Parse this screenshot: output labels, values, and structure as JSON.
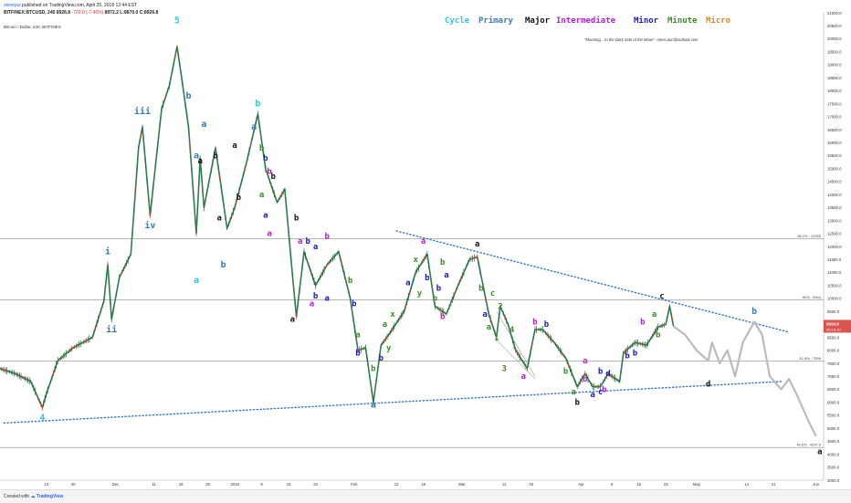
{
  "header": {
    "user": "stevepui",
    "published": "published on TradingView.com, April 25, 2018 12:44 EST",
    "symbol_line": "BITFINEX:BTCUSD, 240",
    "ohlc_last": "8926.8",
    "change": "-720.0 (-7.46%)",
    "ohlc_rest": "8972.2 L:8870.0 C:8926.8",
    "chart_title": "Bitcoin / Dollar, 240, BITFINEX"
  },
  "legend": {
    "cycle": "Cycle",
    "primary": "Primary",
    "major": "Major",
    "intermediate": "Intermediate",
    "minor": "Minor",
    "minute": "Minute",
    "micro": "Micro"
  },
  "colors": {
    "cycle": "#2fc5e0",
    "primary": "#3b78b8",
    "major": "#111111",
    "intermediate": "#b21fd6",
    "minor": "#1a1ac8",
    "minute": "#3b8c2a",
    "micro": "#e08a10",
    "candle": "#2e7d4f",
    "trendline": "#3377cc",
    "projection": "#bbbbbb",
    "current_price": "#d9534f"
  },
  "quote": "\"Mooning... to the Dark Side of the Moon\" -steve.pun@outlook.com",
  "footer": {
    "created": "Created with",
    "brand": "TradingView"
  },
  "chart_data": {
    "type": "line",
    "y_axis": {
      "ticks": [
        "21000.0",
        "20500.0",
        "20000.0",
        "19500.0",
        "19000.0",
        "18500.0",
        "18000.0",
        "17500.0",
        "17000.0",
        "16500.0",
        "16000.0",
        "15500.0",
        "15000.0",
        "14500.0",
        "14000.0",
        "13500.0",
        "13000.0",
        "12500.0",
        "12000.0",
        "11500.0",
        "11000.0",
        "10500.0",
        "10000.0",
        "9500.0",
        "9000.0",
        "8500.0",
        "8000.0",
        "7500.0",
        "7000.0",
        "6500.0",
        "6000.0",
        "5500.0",
        "5000.0",
        "4500.0",
        "4000.0",
        "3500.0",
        "3000.0"
      ],
      "range": [
        3000,
        21000
      ]
    },
    "x_axis": {
      "ticks": [
        "13",
        "20",
        "Dec",
        "11",
        "18",
        "25",
        "2018",
        "8",
        "15",
        "22",
        "Feb",
        "12",
        "19",
        "Mar",
        "12",
        "19",
        "Apr",
        "9",
        "16",
        "23",
        "May",
        "14",
        "21",
        "Jun"
      ]
    },
    "fib_levels": [
      {
        "label": "38.2% : 12293",
        "value": 12293
      },
      {
        "label": "50% : 9944",
        "value": 9944
      },
      {
        "label": "61.8% : 7595",
        "value": 7595
      },
      {
        "label": "78.6% : 4257.5",
        "value": 4257.5
      }
    ],
    "current_price": "8926.8",
    "current_price_countdown": "00:15:10",
    "price_path": [
      {
        "x": "Nov 1",
        "y": 7300
      },
      {
        "x": "Nov 5",
        "y": 7100
      },
      {
        "x": "Nov 9",
        "y": 6800
      },
      {
        "x": "Nov 12",
        "y": 5800
      },
      {
        "x": "Nov 13",
        "y": 6300
      },
      {
        "x": "Nov 16",
        "y": 7600
      },
      {
        "x": "Nov 20",
        "y": 8100
      },
      {
        "x": "Nov 25",
        "y": 8500
      },
      {
        "x": "Nov 28",
        "y": 9900
      },
      {
        "x": "Nov 29",
        "y": 11300
      },
      {
        "x": "Nov 30",
        "y": 9200
      },
      {
        "x": "Dec 2",
        "y": 10800
      },
      {
        "x": "Dec 5",
        "y": 11700
      },
      {
        "x": "Dec 7",
        "y": 15800
      },
      {
        "x": "Dec 8",
        "y": 16600
      },
      {
        "x": "Dec 10",
        "y": 13200
      },
      {
        "x": "Dec 13",
        "y": 17300
      },
      {
        "x": "Dec 15",
        "y": 18200
      },
      {
        "x": "Dec 17",
        "y": 19700
      },
      {
        "x": "Dec 18",
        "y": 18700
      },
      {
        "x": "Dec 20",
        "y": 16600
      },
      {
        "x": "Dec 22",
        "y": 12500
      },
      {
        "x": "Dec 23",
        "y": 15400
      },
      {
        "x": "Dec 24",
        "y": 13500
      },
      {
        "x": "Dec 27",
        "y": 15800
      },
      {
        "x": "Dec 30",
        "y": 12700
      },
      {
        "x": "Jan 1",
        "y": 13500
      },
      {
        "x": "Jan 4",
        "y": 15200
      },
      {
        "x": "Jan 7",
        "y": 17100
      },
      {
        "x": "Jan 9",
        "y": 15000
      },
      {
        "x": "Jan 12",
        "y": 13700
      },
      {
        "x": "Jan 14",
        "y": 14200
      },
      {
        "x": "Jan 16",
        "y": 10900
      },
      {
        "x": "Jan 17",
        "y": 9300
      },
      {
        "x": "Jan 19",
        "y": 11800
      },
      {
        "x": "Jan 22",
        "y": 10500
      },
      {
        "x": "Jan 25",
        "y": 11300
      },
      {
        "x": "Jan 28",
        "y": 11800
      },
      {
        "x": "Jan 31",
        "y": 10000
      },
      {
        "x": "Feb 2",
        "y": 8000
      },
      {
        "x": "Feb 4",
        "y": 8100
      },
      {
        "x": "Feb 6",
        "y": 6000
      },
      {
        "x": "Feb 8",
        "y": 8200
      },
      {
        "x": "Feb 10",
        "y": 8600
      },
      {
        "x": "Feb 14",
        "y": 9500
      },
      {
        "x": "Feb 17",
        "y": 11000
      },
      {
        "x": "Feb 20",
        "y": 11700
      },
      {
        "x": "Feb 22",
        "y": 9700
      },
      {
        "x": "Feb 25",
        "y": 9400
      },
      {
        "x": "Feb 28",
        "y": 10500
      },
      {
        "x": "Mar 3",
        "y": 11500
      },
      {
        "x": "Mar 5",
        "y": 11600
      },
      {
        "x": "Mar 8",
        "y": 9400
      },
      {
        "x": "Mar 10",
        "y": 8500
      },
      {
        "x": "Mar 11",
        "y": 9700
      },
      {
        "x": "Mar 13",
        "y": 9000
      },
      {
        "x": "Mar 15",
        "y": 8000
      },
      {
        "x": "Mar 18",
        "y": 7300
      },
      {
        "x": "Mar 20",
        "y": 8800
      },
      {
        "x": "Mar 22",
        "y": 8800
      },
      {
        "x": "Mar 25",
        "y": 8300
      },
      {
        "x": "Mar 28",
        "y": 7700
      },
      {
        "x": "Mar 31",
        "y": 6600
      },
      {
        "x": "Apr 2",
        "y": 7100
      },
      {
        "x": "Apr 4",
        "y": 6600
      },
      {
        "x": "Apr 6",
        "y": 6600
      },
      {
        "x": "Apr 8",
        "y": 7100
      },
      {
        "x": "Apr 11",
        "y": 6800
      },
      {
        "x": "Apr 12",
        "y": 7900
      },
      {
        "x": "Apr 15",
        "y": 8300
      },
      {
        "x": "Apr 18",
        "y": 8200
      },
      {
        "x": "Apr 21",
        "y": 8900
      },
      {
        "x": "Apr 23",
        "y": 9000
      },
      {
        "x": "Apr 24",
        "y": 9700
      },
      {
        "x": "Apr 25",
        "y": 8926.8
      }
    ],
    "projection_path": [
      {
        "x": "Apr 25",
        "y": 8926.8
      },
      {
        "x": "Apr 28",
        "y": 8600
      },
      {
        "x": "May 1",
        "y": 8000
      },
      {
        "x": "May 4",
        "y": 7600
      },
      {
        "x": "May 5",
        "y": 8300
      },
      {
        "x": "May 7",
        "y": 7500
      },
      {
        "x": "May 9",
        "y": 8000
      },
      {
        "x": "May 11",
        "y": 7000
      },
      {
        "x": "May 13",
        "y": 8300
      },
      {
        "x": "May 16",
        "y": 9100
      },
      {
        "x": "May 18",
        "y": 8600
      },
      {
        "x": "May 20",
        "y": 7000
      },
      {
        "x": "May 23",
        "y": 6500
      },
      {
        "x": "May 25",
        "y": 6900
      },
      {
        "x": "May 27",
        "y": 6300
      },
      {
        "x": "May 30",
        "y": 5300
      },
      {
        "x": "Jun 1",
        "y": 4700
      }
    ],
    "wave_labels": [
      {
        "text": "4",
        "level": "cycle",
        "x": "Nov 12",
        "y": 5300
      },
      {
        "text": "i",
        "level": "primary",
        "x": "Nov 29",
        "y": 11700
      },
      {
        "text": "ii",
        "level": "primary",
        "x": "Nov 30",
        "y": 8700
      },
      {
        "text": "iii",
        "level": "primary",
        "x": "Dec 8",
        "y": 17100
      },
      {
        "text": "iv",
        "level": "primary",
        "x": "Dec 10",
        "y": 12700
      },
      {
        "text": "5",
        "level": "cycle",
        "x": "Dec 17",
        "y": 20600
      },
      {
        "text": "b",
        "level": "primary",
        "x": "Dec 20",
        "y": 17700
      },
      {
        "text": "a",
        "level": "primary",
        "x": "Dec 22",
        "y": 15400
      },
      {
        "text": "a",
        "level": "cycle",
        "x": "Dec 22",
        "y": 10600
      },
      {
        "text": "a",
        "level": "major",
        "x": "Dec 23",
        "y": 15200
      },
      {
        "text": "a",
        "level": "primary",
        "x": "Dec 24",
        "y": 16600
      },
      {
        "text": "b",
        "level": "major",
        "x": "Dec 27",
        "y": 15400
      },
      {
        "text": "a",
        "level": "major",
        "x": "Dec 28",
        "y": 13000
      },
      {
        "text": "b",
        "level": "primary",
        "x": "Dec 29",
        "y": 11200
      },
      {
        "text": "a",
        "level": "major",
        "x": "Jan 1",
        "y": 15800
      },
      {
        "text": "b",
        "level": "major",
        "x": "Jan 2",
        "y": 13800
      },
      {
        "text": "b",
        "level": "cycle",
        "x": "Jan 7",
        "y": 17400
      },
      {
        "text": "a",
        "level": "primary",
        "x": "Jan 6",
        "y": 16500
      },
      {
        "text": "b",
        "level": "minute",
        "x": "Jan 8",
        "y": 15700
      },
      {
        "text": "b",
        "level": "minor",
        "x": "Jan 9",
        "y": 15300
      },
      {
        "text": "b",
        "level": "intermediate",
        "x": "Jan 10",
        "y": 14800
      },
      {
        "text": "b",
        "level": "major",
        "x": "Jan 11",
        "y": 14600
      },
      {
        "text": "a",
        "level": "minute",
        "x": "Jan 8",
        "y": 13900
      },
      {
        "text": "a",
        "level": "minor",
        "x": "Jan 9",
        "y": 13100
      },
      {
        "text": "a",
        "level": "intermediate",
        "x": "Jan 10",
        "y": 12400
      },
      {
        "text": "b",
        "level": "major",
        "x": "Jan 17",
        "y": 13000
      },
      {
        "text": "a",
        "level": "major",
        "x": "Jan 16",
        "y": 9100
      },
      {
        "text": "a",
        "level": "intermediate",
        "x": "Jan 18",
        "y": 12100
      },
      {
        "text": "b",
        "level": "minor",
        "x": "Jan 20",
        "y": 12100
      },
      {
        "text": "a",
        "level": "minor",
        "x": "Jan 22",
        "y": 11900
      },
      {
        "text": "b",
        "level": "intermediate",
        "x": "Jan 25",
        "y": 12300
      },
      {
        "text": "a",
        "level": "intermediate",
        "x": "Jan 21",
        "y": 9700
      },
      {
        "text": "b",
        "level": "minor",
        "x": "Jan 22",
        "y": 10000
      },
      {
        "text": "a",
        "level": "minor",
        "x": "Jan 25",
        "y": 9900
      },
      {
        "text": "b",
        "level": "minute",
        "x": "Jan 31",
        "y": 10600
      },
      {
        "text": "b",
        "level": "minor",
        "x": "Feb 1",
        "y": 9700
      },
      {
        "text": "b",
        "level": "minor",
        "x": "Feb 2",
        "y": 7800
      },
      {
        "text": "a",
        "level": "minute",
        "x": "Feb 2",
        "y": 8500
      },
      {
        "text": "a",
        "level": "primary",
        "x": "Feb 6",
        "y": 5800
      },
      {
        "text": "b",
        "level": "minute",
        "x": "Feb 6",
        "y": 7200
      },
      {
        "text": "b",
        "level": "minor",
        "x": "Feb 8",
        "y": 7600
      },
      {
        "text": "a",
        "level": "minute",
        "x": "Feb 9",
        "y": 8900
      },
      {
        "text": "y",
        "level": "minute",
        "x": "Feb 10",
        "y": 8000
      },
      {
        "text": "x",
        "level": "minute",
        "x": "Feb 11",
        "y": 9300
      },
      {
        "text": "a",
        "level": "minor",
        "x": "Feb 15",
        "y": 10500
      },
      {
        "text": "x",
        "level": "minute",
        "x": "Feb 17",
        "y": 11400
      },
      {
        "text": "y",
        "level": "minute",
        "x": "Feb 18",
        "y": 10100
      },
      {
        "text": "a",
        "level": "intermediate",
        "x": "Feb 19",
        "y": 12100
      },
      {
        "text": "b",
        "level": "minor",
        "x": "Feb 20",
        "y": 10700
      },
      {
        "text": "b",
        "level": "minute",
        "x": "Feb 22",
        "y": 9900
      },
      {
        "text": "b",
        "level": "minor",
        "x": "Feb 23",
        "y": 10300
      },
      {
        "text": "b",
        "level": "intermediate",
        "x": "Feb 24",
        "y": 9200
      },
      {
        "text": "b",
        "level": "minute",
        "x": "Feb 24",
        "y": 11300
      },
      {
        "text": "a",
        "level": "minor",
        "x": "Feb 25",
        "y": 10800
      },
      {
        "text": "a",
        "level": "major",
        "x": "Mar 5",
        "y": 12000
      },
      {
        "text": "b",
        "level": "minute",
        "x": "Mar 6",
        "y": 10300
      },
      {
        "text": "a",
        "level": "minor",
        "x": "Mar 7",
        "y": 9300
      },
      {
        "text": "c",
        "level": "minute",
        "x": "Mar 9",
        "y": 10100
      },
      {
        "text": "2",
        "level": "minute",
        "x": "Mar 11",
        "y": 9600
      },
      {
        "text": "1",
        "level": "minute",
        "x": "Mar 10",
        "y": 8400
      },
      {
        "text": "a",
        "level": "minute",
        "x": "Mar 8",
        "y": 8800
      },
      {
        "text": "4",
        "level": "minute",
        "x": "Mar 14",
        "y": 8700
      },
      {
        "text": "3",
        "level": "minute",
        "x": "Mar 12",
        "y": 7200
      },
      {
        "text": "a",
        "level": "intermediate",
        "x": "Mar 17",
        "y": 6900
      },
      {
        "text": "b",
        "level": "intermediate",
        "x": "Mar 20",
        "y": 9000
      },
      {
        "text": "b",
        "level": "minor",
        "x": "Mar 23",
        "y": 8900
      },
      {
        "text": "b",
        "level": "minute",
        "x": "Mar 28",
        "y": 7100
      },
      {
        "text": "a",
        "level": "minute",
        "x": "Mar 30",
        "y": 6300
      },
      {
        "text": "b",
        "level": "major",
        "x": "Mar 31",
        "y": 5900
      },
      {
        "text": "a",
        "level": "intermediate",
        "x": "Apr 2",
        "y": 7500
      },
      {
        "text": "b",
        "level": "intermediate",
        "x": "Apr 2",
        "y": 6800
      },
      {
        "text": "a",
        "level": "minor",
        "x": "Apr 4",
        "y": 6200
      },
      {
        "text": "c",
        "level": "minor",
        "x": "Apr 6",
        "y": 6300
      },
      {
        "text": "b",
        "level": "minor",
        "x": "Apr 6",
        "y": 7100
      },
      {
        "text": "b",
        "level": "intermediate",
        "x": "Apr 7",
        "y": 6400
      },
      {
        "text": "b",
        "level": "minor",
        "x": "Apr 13",
        "y": 7700
      },
      {
        "text": "d",
        "level": "minor",
        "x": "Apr 8",
        "y": 7000
      },
      {
        "text": "b",
        "level": "minor",
        "x": "Apr 15",
        "y": 7800
      },
      {
        "text": "a",
        "level": "minute",
        "x": "Apr 20",
        "y": 9300
      },
      {
        "text": "b",
        "level": "minute",
        "x": "Apr 21",
        "y": 8500
      },
      {
        "text": "b",
        "level": "intermediate",
        "x": "Apr 17",
        "y": 9000
      },
      {
        "text": "c",
        "level": "major",
        "x": "Apr 22",
        "y": 10000
      },
      {
        "text": "d",
        "level": "major",
        "x": "May 4",
        "y": 6600
      },
      {
        "text": "b",
        "level": "primary",
        "x": "May 16",
        "y": 9400
      },
      {
        "text": "a",
        "level": "major",
        "x": "Jun 2",
        "y": 4000
      }
    ]
  }
}
